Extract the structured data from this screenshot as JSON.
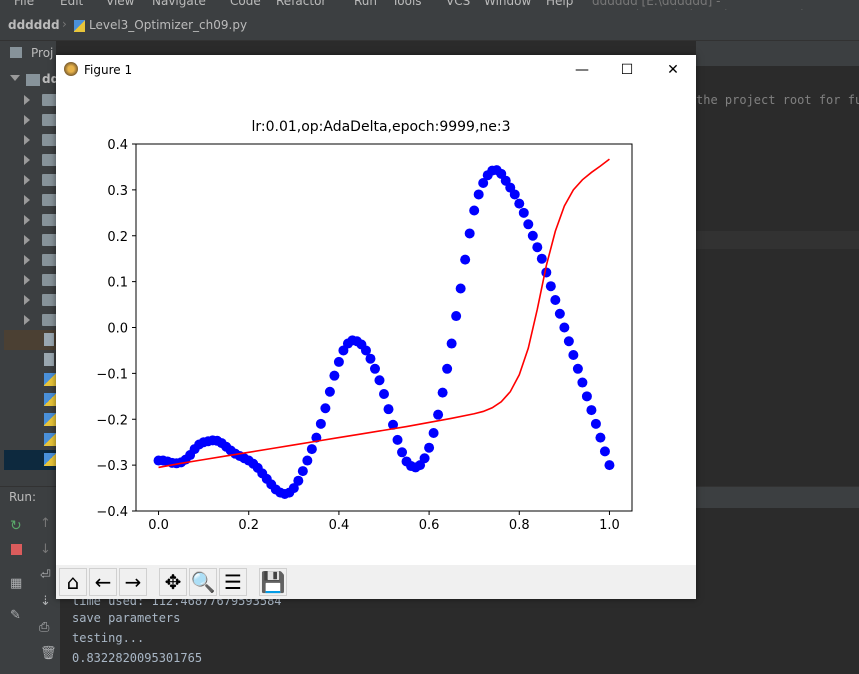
{
  "menu": [
    "File",
    "Edit",
    "View",
    "Navigate",
    "Code",
    "Refactor",
    "Run",
    "Tools",
    "VCS",
    "Window",
    "Help",
    "dddddd [E:\\dddddd] - ...\\Level3_Optimizer_ch09.py - PyCharm"
  ],
  "breadcrumb": {
    "project": "dddddd",
    "file": "Level3_Optimizer_ch09.py"
  },
  "project_panel": {
    "label": "Proj",
    "root": "dd"
  },
  "editor_tab": "Level3_Optimizer_ch09.py",
  "editor_hint": "the project root for fu",
  "run": {
    "label": "Run:",
    "console_lines": [
      "time used: 112.46877679593584",
      "save parameters",
      "testing...",
      "0.8322820095301765"
    ]
  },
  "figure": {
    "window_title": "Figure 1",
    "toolbar": [
      "home-icon",
      "back-icon",
      "forward-icon",
      "pan-icon",
      "zoom-icon",
      "configure-icon",
      "save-icon"
    ]
  },
  "colors": {
    "scatter": "#0000ff",
    "fit_line": "#ff0000",
    "ide_bg": "#2b2b2b",
    "ide_panel": "#3c3f41"
  },
  "chart_data": {
    "type": "scatter",
    "title": "lr:0.01,op:AdaDelta,epoch:9999,ne:3",
    "xlabel": "",
    "ylabel": "",
    "xlim": [
      -0.05,
      1.05
    ],
    "ylim": [
      -0.4,
      0.4
    ],
    "xticks": [
      "0.0",
      "0.2",
      "0.4",
      "0.6",
      "0.8",
      "1.0"
    ],
    "yticks": [
      "−0.4",
      "−0.3",
      "−0.2",
      "−0.1",
      "0.0",
      "0.1",
      "0.2",
      "0.3",
      "0.4"
    ],
    "grid": false,
    "series": [
      {
        "kind": "scatter",
        "color": "#0000ff",
        "x": [
          0.0,
          0.01,
          0.02,
          0.03,
          0.04,
          0.05,
          0.06,
          0.07,
          0.08,
          0.09,
          0.1,
          0.11,
          0.12,
          0.13,
          0.14,
          0.15,
          0.16,
          0.17,
          0.18,
          0.19,
          0.2,
          0.21,
          0.22,
          0.23,
          0.24,
          0.25,
          0.26,
          0.27,
          0.28,
          0.29,
          0.3,
          0.31,
          0.32,
          0.33,
          0.34,
          0.35,
          0.36,
          0.37,
          0.38,
          0.39,
          0.4,
          0.41,
          0.42,
          0.43,
          0.44,
          0.45,
          0.46,
          0.47,
          0.48,
          0.49,
          0.5,
          0.51,
          0.52,
          0.53,
          0.54,
          0.55,
          0.56,
          0.57,
          0.58,
          0.59,
          0.6,
          0.61,
          0.62,
          0.63,
          0.64,
          0.65,
          0.66,
          0.67,
          0.68,
          0.69,
          0.7,
          0.71,
          0.72,
          0.73,
          0.74,
          0.75,
          0.76,
          0.77,
          0.78,
          0.79,
          0.8,
          0.81,
          0.82,
          0.83,
          0.84,
          0.85,
          0.86,
          0.87,
          0.88,
          0.89,
          0.9,
          0.91,
          0.92,
          0.93,
          0.94,
          0.95,
          0.96,
          0.97,
          0.98,
          0.99,
          1.0
        ],
        "y": [
          -0.29,
          -0.29,
          -0.292,
          -0.295,
          -0.296,
          -0.294,
          -0.288,
          -0.278,
          -0.265,
          -0.255,
          -0.25,
          -0.248,
          -0.246,
          -0.247,
          -0.252,
          -0.26,
          -0.268,
          -0.275,
          -0.28,
          -0.285,
          -0.29,
          -0.297,
          -0.306,
          -0.318,
          -0.33,
          -0.342,
          -0.353,
          -0.36,
          -0.363,
          -0.36,
          -0.35,
          -0.334,
          -0.313,
          -0.29,
          -0.265,
          -0.24,
          -0.21,
          -0.176,
          -0.14,
          -0.105,
          -0.075,
          -0.05,
          -0.035,
          -0.028,
          -0.03,
          -0.037,
          -0.05,
          -0.068,
          -0.09,
          -0.115,
          -0.145,
          -0.178,
          -0.212,
          -0.245,
          -0.272,
          -0.292,
          -0.302,
          -0.305,
          -0.3,
          -0.285,
          -0.262,
          -0.23,
          -0.19,
          -0.142,
          -0.09,
          -0.035,
          0.025,
          0.085,
          0.148,
          0.205,
          0.255,
          0.29,
          0.315,
          0.332,
          0.342,
          0.343,
          0.335,
          0.32,
          0.305,
          0.29,
          0.27,
          0.25,
          0.225,
          0.2,
          0.175,
          0.15,
          0.12,
          0.09,
          0.06,
          0.03,
          0.0,
          -0.03,
          -0.06,
          -0.09,
          -0.12,
          -0.15,
          -0.18,
          -0.21,
          -0.24,
          -0.27,
          -0.3
        ]
      },
      {
        "kind": "line",
        "color": "#ff0000",
        "x": [
          0.0,
          0.05,
          0.1,
          0.15,
          0.2,
          0.25,
          0.3,
          0.35,
          0.4,
          0.45,
          0.5,
          0.55,
          0.6,
          0.65,
          0.7,
          0.72,
          0.74,
          0.76,
          0.78,
          0.8,
          0.82,
          0.84,
          0.86,
          0.88,
          0.9,
          0.92,
          0.94,
          0.96,
          0.98,
          1.0
        ],
        "y": [
          -0.305,
          -0.296,
          -0.288,
          -0.28,
          -0.272,
          -0.264,
          -0.256,
          -0.248,
          -0.24,
          -0.232,
          -0.224,
          -0.216,
          -0.207,
          -0.198,
          -0.188,
          -0.183,
          -0.175,
          -0.162,
          -0.14,
          -0.103,
          -0.045,
          0.04,
          0.135,
          0.21,
          0.265,
          0.3,
          0.322,
          0.338,
          0.352,
          0.367
        ]
      }
    ]
  }
}
